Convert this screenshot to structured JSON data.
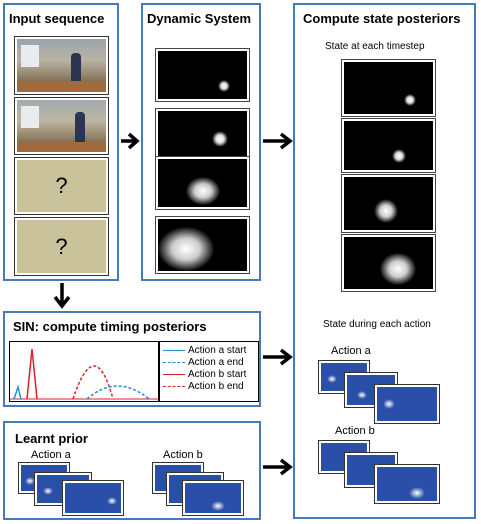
{
  "panels": {
    "input": {
      "title": "Input sequence",
      "unknown_mark": "?"
    },
    "dynamic": {
      "title": "Dynamic System"
    },
    "posteriors": {
      "title": "Compute state posteriors",
      "timestep_caption": "State at each timestep",
      "action_caption": "State during each action",
      "action_a": "Action a",
      "action_b": "Action b"
    },
    "sin": {
      "title": "SIN: compute timing posteriors",
      "legend": [
        {
          "label": "Action a start",
          "color": "#1e90d6",
          "style": "solid"
        },
        {
          "label": "Action a end",
          "color": "#1e90d6",
          "style": "dashed"
        },
        {
          "label": "Action b start",
          "color": "#d9232e",
          "style": "solid"
        },
        {
          "label": "Action b end",
          "color": "#d9232e",
          "style": "dashed"
        }
      ]
    },
    "prior": {
      "title": "Learnt prior",
      "action_a": "Action a",
      "action_b": "Action b"
    }
  },
  "colors": {
    "panel_border": "#4a7ab5",
    "unknown_fill": "#c9c29a",
    "blue_frame": "#2a4fa8"
  }
}
